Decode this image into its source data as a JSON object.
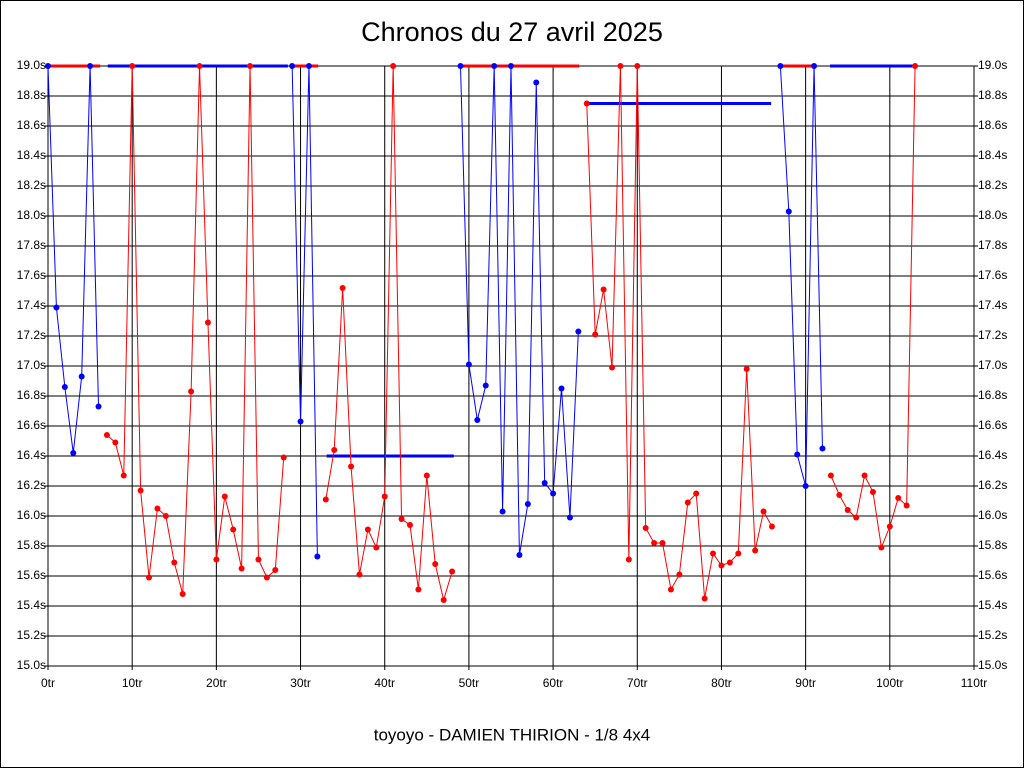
{
  "chart_data": {
    "type": "line",
    "title": "Chronos du 27 avril 2025",
    "footer": "toyoyo - DAMIEN THIRION - 1/8 4x4",
    "x": [
      0,
      1,
      2,
      3,
      4,
      5,
      6,
      7,
      8,
      9,
      10,
      11,
      12,
      13,
      14,
      15,
      16,
      17,
      18,
      19,
      20,
      21,
      22,
      23,
      24,
      25,
      26,
      27,
      28,
      29,
      30,
      31,
      32,
      33,
      34,
      35,
      36,
      37,
      38,
      39,
      40,
      41,
      42,
      43,
      44,
      45,
      46,
      47,
      48,
      49,
      50,
      51,
      52,
      53,
      54,
      55,
      56,
      57,
      58,
      59,
      60,
      61,
      62,
      63,
      64,
      65,
      66,
      67,
      68,
      69,
      70,
      71,
      72,
      73,
      74,
      75,
      76,
      77,
      78,
      79,
      80,
      81,
      82,
      83,
      84,
      85,
      86,
      87,
      88,
      89,
      90,
      91,
      92,
      93,
      94,
      95,
      96,
      97,
      98,
      99,
      100,
      101,
      102,
      103
    ],
    "series": [
      {
        "color": "#ff0000",
        "values": [
          null,
          null,
          null,
          null,
          null,
          null,
          null,
          16.54,
          16.49,
          16.27,
          19.0,
          16.17,
          15.59,
          16.05,
          16.0,
          15.69,
          15.48,
          16.83,
          19.0,
          17.29,
          15.71,
          16.13,
          15.91,
          15.65,
          19.0,
          15.71,
          15.59,
          15.64,
          16.39,
          null,
          null,
          null,
          null,
          16.11,
          16.44,
          17.52,
          16.33,
          15.61,
          15.91,
          15.79,
          16.13,
          19.0,
          15.98,
          15.94,
          15.51,
          16.27,
          15.68,
          15.44,
          15.63,
          null,
          null,
          null,
          null,
          null,
          null,
          null,
          null,
          null,
          null,
          null,
          null,
          null,
          null,
          null,
          18.75,
          17.21,
          17.51,
          16.99,
          19.0,
          15.71,
          19.0,
          15.92,
          15.82,
          15.82,
          15.51,
          15.61,
          16.09,
          16.15,
          15.45,
          15.75,
          15.67,
          15.69,
          15.75,
          16.98,
          15.77,
          16.03,
          15.93,
          null,
          null,
          null,
          null,
          null,
          null,
          16.27,
          16.14,
          16.04,
          15.99,
          16.27,
          16.16,
          15.79,
          15.93,
          16.12,
          16.07,
          19.0
        ]
      },
      {
        "color": "#0000ff",
        "values": [
          19.0,
          17.39,
          16.86,
          16.42,
          16.93,
          19.0,
          16.73,
          null,
          null,
          null,
          null,
          null,
          null,
          null,
          null,
          null,
          null,
          null,
          null,
          null,
          null,
          null,
          null,
          null,
          null,
          null,
          null,
          null,
          null,
          19.0,
          16.63,
          19.0,
          15.73,
          null,
          null,
          null,
          null,
          null,
          null,
          null,
          null,
          null,
          null,
          null,
          null,
          null,
          null,
          null,
          null,
          19.0,
          17.01,
          16.64,
          16.87,
          19.0,
          16.03,
          19.0,
          15.74,
          16.08,
          18.89,
          16.22,
          16.15,
          16.85,
          15.99,
          17.23,
          null,
          null,
          null,
          null,
          null,
          null,
          null,
          null,
          null,
          null,
          null,
          null,
          null,
          null,
          null,
          null,
          null,
          null,
          null,
          null,
          null,
          null,
          null,
          19.0,
          18.03,
          16.41,
          16.2,
          19.0,
          16.45,
          null,
          null,
          null,
          null,
          null,
          null,
          null,
          null,
          null,
          null,
          null
        ]
      }
    ],
    "segments": [
      {
        "color": "#ff0000",
        "x": [
          0,
          6.2
        ],
        "value": 19.0
      },
      {
        "color": "#0000ff",
        "x": [
          7.1,
          28.5
        ],
        "value": 19.0
      },
      {
        "color": "#ff0000",
        "x": [
          29,
          32.1
        ],
        "value": 19.0
      },
      {
        "color": "#0000ff",
        "x": [
          33.1,
          48.2
        ],
        "value": 16.4
      },
      {
        "color": "#ff0000",
        "x": [
          49,
          63.1
        ],
        "value": 19.0
      },
      {
        "color": "#0000ff",
        "x": [
          64,
          85.9
        ],
        "value": 18.75
      },
      {
        "color": "#ff0000",
        "x": [
          87,
          91.2
        ],
        "value": 19.0
      },
      {
        "color": "#0000ff",
        "x": [
          92.9,
          103
        ],
        "value": 19.0
      }
    ],
    "xlim": [
      0,
      110
    ],
    "xticks": [
      {
        "value": 0,
        "label": "0tr"
      },
      {
        "value": 10,
        "label": "10tr"
      },
      {
        "value": 20,
        "label": "20tr"
      },
      {
        "value": 30,
        "label": "30tr"
      },
      {
        "value": 40,
        "label": "40tr"
      },
      {
        "value": 50,
        "label": "50tr"
      },
      {
        "value": 60,
        "label": "60tr"
      },
      {
        "value": 70,
        "label": "70tr"
      },
      {
        "value": 80,
        "label": "80tr"
      },
      {
        "value": 90,
        "label": "90tr"
      },
      {
        "value": 100,
        "label": "100tr"
      },
      {
        "value": 110,
        "label": "110tr"
      }
    ],
    "ylim": [
      15.0,
      19.0
    ],
    "yticks": [
      {
        "value": 15.0,
        "label": "15.0s"
      },
      {
        "value": 15.2,
        "label": "15.2s"
      },
      {
        "value": 15.4,
        "label": "15.4s"
      },
      {
        "value": 15.6,
        "label": "15.6s"
      },
      {
        "value": 15.8,
        "label": "15.8s"
      },
      {
        "value": 16.0,
        "label": "16.0s"
      },
      {
        "value": 16.2,
        "label": "16.2s"
      },
      {
        "value": 16.4,
        "label": "16.4s"
      },
      {
        "value": 16.6,
        "label": "16.6s"
      },
      {
        "value": 16.8,
        "label": "16.8s"
      },
      {
        "value": 17.0,
        "label": "17.0s"
      },
      {
        "value": 17.2,
        "label": "17.2s"
      },
      {
        "value": 17.4,
        "label": "17.4s"
      },
      {
        "value": 17.6,
        "label": "17.6s"
      },
      {
        "value": 17.8,
        "label": "17.8s"
      },
      {
        "value": 18.0,
        "label": "18.0s"
      },
      {
        "value": 18.2,
        "label": "18.2s"
      },
      {
        "value": 18.4,
        "label": "18.4s"
      },
      {
        "value": 18.6,
        "label": "18.6s"
      },
      {
        "value": 18.8,
        "label": "18.8s"
      },
      {
        "value": 19.0,
        "label": "19.0s"
      }
    ],
    "grid": true
  }
}
